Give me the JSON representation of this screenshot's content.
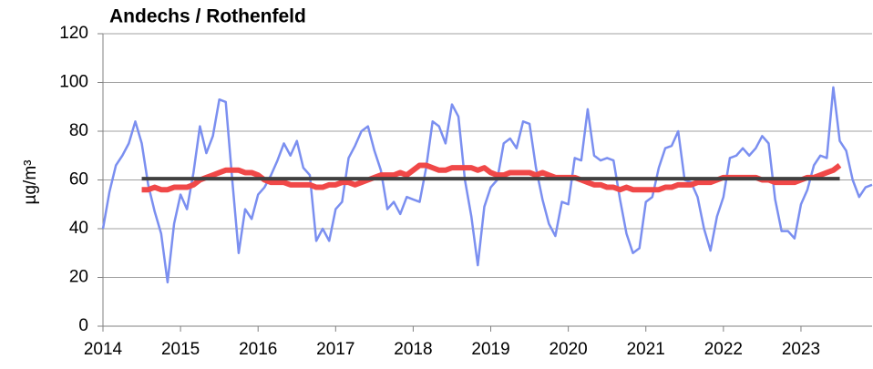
{
  "chart_data": {
    "type": "line",
    "title": "Andechs / Rothenfeld",
    "y_label": "µg/m³",
    "x": [
      2014,
      2014.083,
      2014.167,
      2014.25,
      2014.333,
      2014.417,
      2014.5,
      2014.583,
      2014.667,
      2014.75,
      2014.833,
      2014.917,
      2015,
      2015.083,
      2015.167,
      2015.25,
      2015.333,
      2015.417,
      2015.5,
      2015.583,
      2015.667,
      2015.75,
      2015.833,
      2015.917,
      2016,
      2016.083,
      2016.167,
      2016.25,
      2016.333,
      2016.417,
      2016.5,
      2016.583,
      2016.667,
      2016.75,
      2016.833,
      2016.917,
      2017,
      2017.083,
      2017.167,
      2017.25,
      2017.333,
      2017.417,
      2017.5,
      2017.583,
      2017.667,
      2017.75,
      2017.833,
      2017.917,
      2018,
      2018.083,
      2018.167,
      2018.25,
      2018.333,
      2018.417,
      2018.5,
      2018.583,
      2018.667,
      2018.75,
      2018.833,
      2018.917,
      2019,
      2019.083,
      2019.167,
      2019.25,
      2019.333,
      2019.417,
      2019.5,
      2019.583,
      2019.667,
      2019.75,
      2019.833,
      2019.917,
      2020,
      2020.083,
      2020.167,
      2020.25,
      2020.333,
      2020.417,
      2020.5,
      2020.583,
      2020.667,
      2020.75,
      2020.833,
      2020.917,
      2021,
      2021.083,
      2021.167,
      2021.25,
      2021.333,
      2021.417,
      2021.5,
      2021.583,
      2021.667,
      2021.75,
      2021.833,
      2021.917,
      2022,
      2022.083,
      2022.167,
      2022.25,
      2022.333,
      2022.417,
      2022.5,
      2022.583,
      2022.667,
      2022.75,
      2022.833,
      2022.917,
      2023,
      2023.083,
      2023.167,
      2023.25,
      2023.333,
      2023.417,
      2023.5,
      2023.583,
      2023.667,
      2023.75,
      2023.833,
      2023.917
    ],
    "series": [
      {
        "color": "#7b8ff0",
        "width": 2.5,
        "values": [
          40,
          55,
          66,
          70,
          75,
          84,
          75,
          58,
          47,
          38,
          18,
          42,
          54,
          48,
          63,
          82,
          71,
          78,
          93,
          92,
          60,
          30,
          48,
          44,
          54,
          57,
          62,
          68,
          75,
          70,
          76,
          65,
          62,
          35,
          40,
          35,
          48,
          51,
          69,
          74,
          80,
          82,
          72,
          64,
          48,
          51,
          46,
          53,
          52,
          51,
          65,
          84,
          82,
          75,
          91,
          86,
          60,
          45,
          25,
          49,
          57,
          60,
          75,
          77,
          73,
          84,
          83,
          65,
          52,
          42,
          37,
          51,
          50,
          69,
          68,
          89,
          70,
          68,
          69,
          68,
          52,
          38,
          30,
          32,
          51,
          53,
          65,
          73,
          74,
          80,
          60,
          59,
          53,
          40,
          31,
          45,
          53,
          69,
          70,
          73,
          70,
          73,
          78,
          75,
          52,
          39,
          39,
          36,
          50,
          56,
          66,
          70,
          69,
          98,
          76,
          72,
          60,
          53,
          57,
          58
        ]
      },
      {
        "color": "#f04848",
        "width": 6,
        "values": [
          null,
          null,
          null,
          null,
          null,
          null,
          56,
          56,
          57,
          56,
          56,
          57,
          57,
          57,
          58,
          60,
          61,
          62,
          63,
          64,
          64,
          64,
          63,
          63,
          62,
          60,
          59,
          59,
          59,
          58,
          58,
          58,
          58,
          57,
          57,
          58,
          58,
          59,
          59,
          58,
          59,
          60,
          61,
          62,
          62,
          62,
          63,
          62,
          64,
          66,
          66,
          65,
          64,
          64,
          65,
          65,
          65,
          65,
          64,
          65,
          63,
          62,
          62,
          63,
          63,
          63,
          63,
          62,
          63,
          62,
          61,
          61,
          61,
          61,
          60,
          59,
          58,
          58,
          57,
          57,
          56,
          57,
          56,
          56,
          56,
          56,
          56,
          57,
          57,
          58,
          58,
          58,
          59,
          59,
          59,
          60,
          61,
          61,
          61,
          61,
          61,
          61,
          60,
          60,
          59,
          59,
          59,
          59,
          60,
          61,
          61,
          62,
          63,
          64,
          66,
          null,
          null,
          null,
          null,
          null
        ]
      }
    ],
    "reference_line": {
      "value": 60.5,
      "x": [
        2014.5,
        2023.5
      ],
      "color": "#404040"
    },
    "xlim": [
      2014,
      2023.917
    ],
    "xticks": [
      2014,
      2015,
      2016,
      2017,
      2018,
      2019,
      2020,
      2021,
      2022,
      2023
    ],
    "ylim": [
      0,
      120
    ],
    "yticks": [
      0,
      20,
      40,
      60,
      80,
      100,
      120
    ],
    "grid": true
  }
}
